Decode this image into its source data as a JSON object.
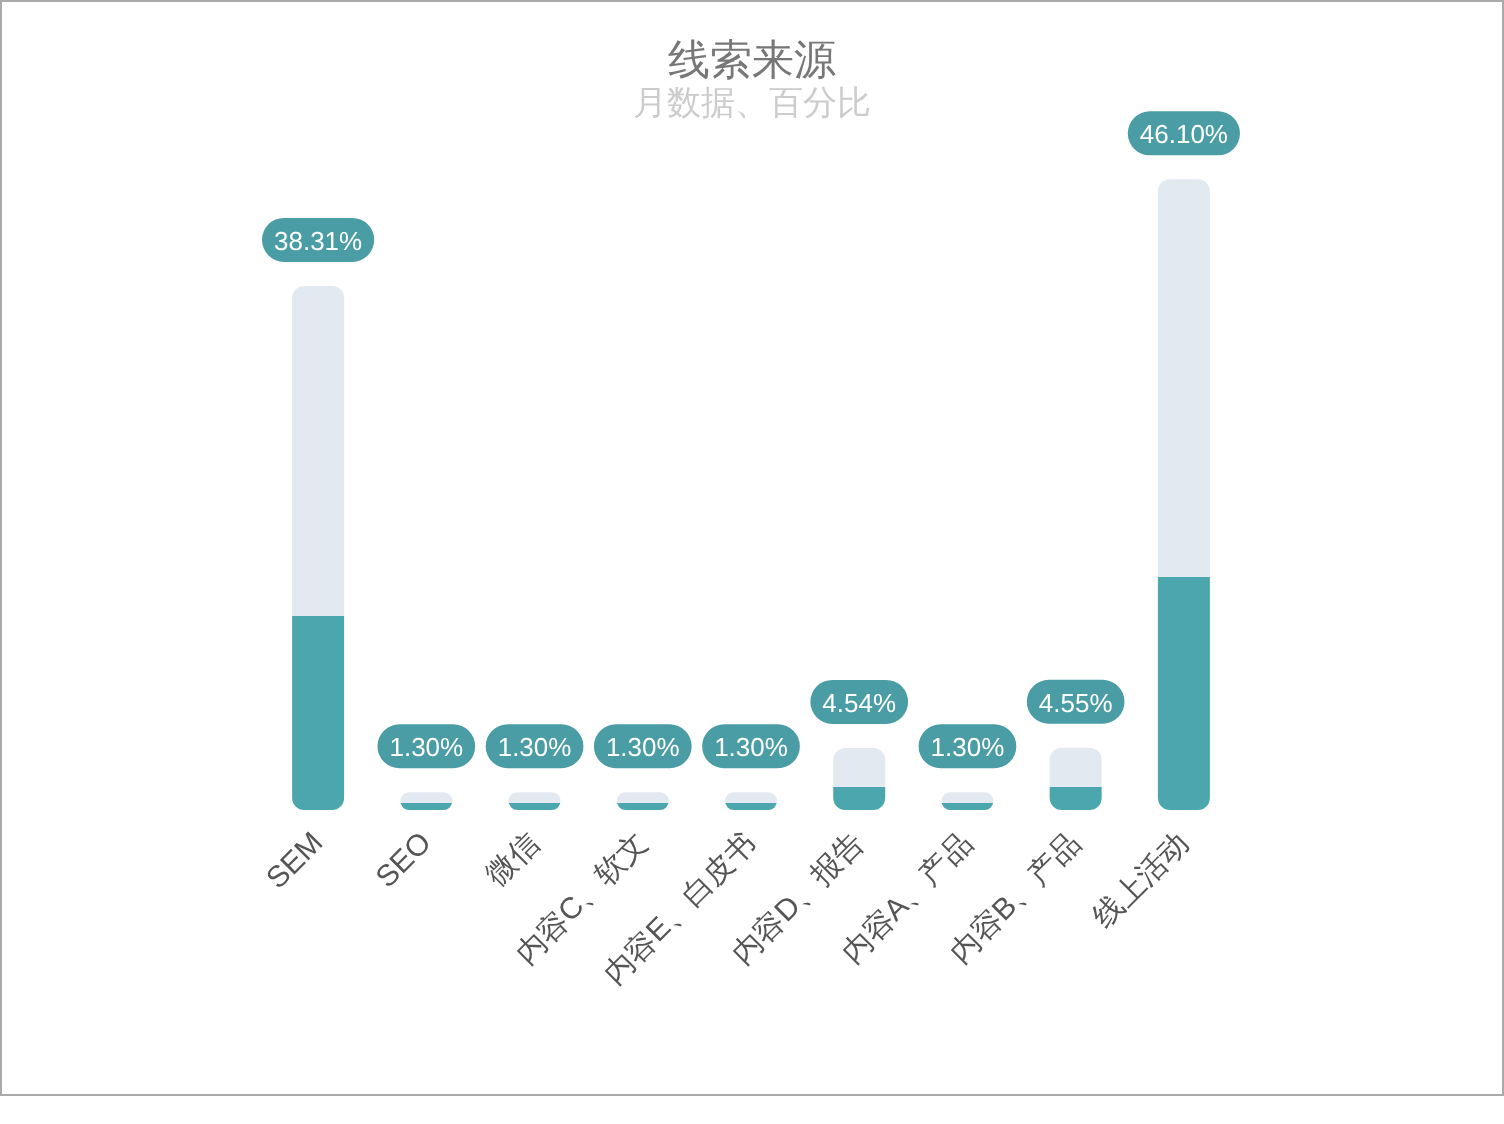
{
  "chart_data": {
    "type": "bar",
    "title": "线索来源",
    "subtitle": "月数据、百分比",
    "categories": [
      "SEM",
      "SEO",
      "微信",
      "内容C、软文",
      "内容E、白皮书",
      "内容D、报告",
      "内容A、产品",
      "内容B、产品",
      "线上活动"
    ],
    "values": [
      38.31,
      1.3,
      1.3,
      1.3,
      1.3,
      4.54,
      1.3,
      4.55,
      46.1
    ],
    "value_labels": [
      "38.31%",
      "1.30%",
      "1.30%",
      "1.30%",
      "1.30%",
      "4.54%",
      "1.30%",
      "4.55%",
      "46.10%"
    ],
    "color": "#e2e9f0"
  }
}
